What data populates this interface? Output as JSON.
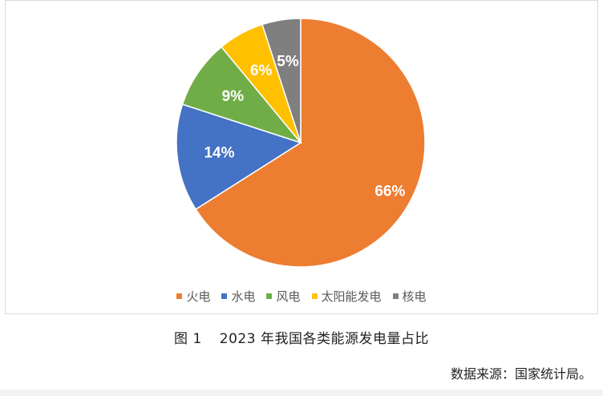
{
  "chart_data": {
    "type": "pie",
    "categories": [
      "火电",
      "水电",
      "风电",
      "太阳能发电",
      "核电"
    ],
    "values": [
      66,
      14,
      9,
      6,
      5
    ],
    "labels": [
      "66%",
      "14%",
      "9%",
      "6%",
      "5%"
    ],
    "colors": [
      "#ED7D31",
      "#4472C4",
      "#70AD47",
      "#FFC000",
      "#7F7F7F"
    ],
    "legend_position": "bottom",
    "start": "top, clockwise"
  },
  "caption": {
    "figure_number": "图 1",
    "title": "2023 年我国各类能源发电量占比"
  },
  "source": "数据来源：国家统计局。"
}
